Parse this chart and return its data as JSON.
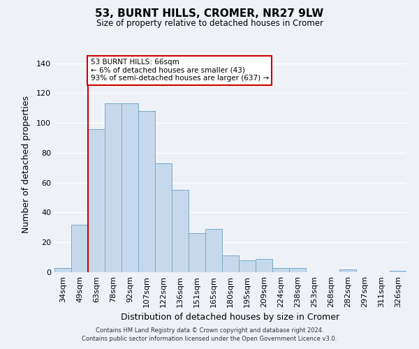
{
  "title": "53, BURNT HILLS, CROMER, NR27 9LW",
  "subtitle": "Size of property relative to detached houses in Cromer",
  "xlabel": "Distribution of detached houses by size in Cromer",
  "ylabel": "Number of detached properties",
  "bar_color": "#c6d9ec",
  "bar_edge_color": "#7aaac8",
  "background_color": "#eef2f7",
  "grid_color": "#ffffff",
  "categories": [
    "34sqm",
    "49sqm",
    "63sqm",
    "78sqm",
    "92sqm",
    "107sqm",
    "122sqm",
    "136sqm",
    "151sqm",
    "165sqm",
    "180sqm",
    "195sqm",
    "209sqm",
    "224sqm",
    "238sqm",
    "253sqm",
    "268sqm",
    "282sqm",
    "297sqm",
    "311sqm",
    "326sqm"
  ],
  "values": [
    3,
    32,
    96,
    113,
    113,
    108,
    73,
    55,
    26,
    29,
    11,
    8,
    9,
    3,
    3,
    0,
    0,
    2,
    0,
    0,
    1
  ],
  "ylim": [
    0,
    145
  ],
  "yticks": [
    0,
    20,
    40,
    60,
    80,
    100,
    120,
    140
  ],
  "property_line_bin_index": 2,
  "annotation_text": "53 BURNT HILLS: 66sqm\n← 6% of detached houses are smaller (43)\n93% of semi-detached houses are larger (637) →",
  "annotation_box_color": "#ffffff",
  "annotation_box_edge_color": "#cc0000",
  "footer_line1": "Contains HM Land Registry data © Crown copyright and database right 2024.",
  "footer_line2": "Contains public sector information licensed under the Open Government Licence v3.0."
}
